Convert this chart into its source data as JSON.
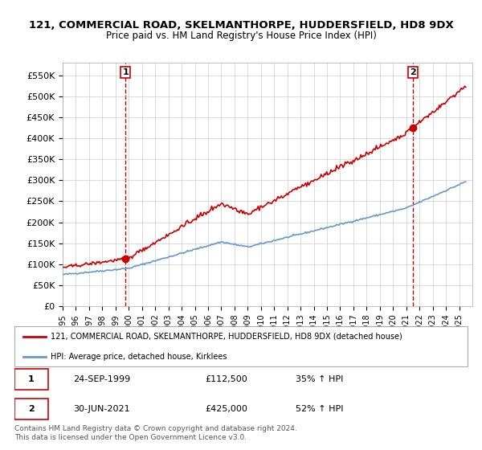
{
  "title1": "121, COMMERCIAL ROAD, SKELMANTHORPE, HUDDERSFIELD, HD8 9DX",
  "title2": "Price paid vs. HM Land Registry's House Price Index (HPI)",
  "ylabel_ticks": [
    "£0",
    "£50K",
    "£100K",
    "£150K",
    "£200K",
    "£250K",
    "£300K",
    "£350K",
    "£400K",
    "£450K",
    "£500K",
    "£550K"
  ],
  "ytick_values": [
    0,
    50000,
    100000,
    150000,
    200000,
    250000,
    300000,
    350000,
    400000,
    450000,
    500000,
    550000
  ],
  "ylim": [
    0,
    580000
  ],
  "sale1": {
    "date": "1999-09-24",
    "price": 112500,
    "label": "1",
    "pct": "35%"
  },
  "sale2": {
    "date": "2021-06-30",
    "price": 425000,
    "label": "2",
    "pct": "52%"
  },
  "legend_line1": "121, COMMERCIAL ROAD, SKELMANTHORPE, HUDDERSFIELD, HD8 9DX (detached house)",
  "legend_line2": "HPI: Average price, detached house, Kirklees",
  "table_rows": [
    {
      "num": "1",
      "date": "24-SEP-1999",
      "price": "£112,500",
      "pct": "35% ↑ HPI"
    },
    {
      "num": "2",
      "date": "30-JUN-2021",
      "price": "£425,000",
      "pct": "52% ↑ HPI"
    }
  ],
  "footer": "Contains HM Land Registry data © Crown copyright and database right 2024.\nThis data is licensed under the Open Government Licence v3.0.",
  "line_color_red": "#cc0000",
  "line_color_blue": "#6699cc",
  "background_color": "#ffffff",
  "grid_color": "#cccccc",
  "sale_marker_color_red": "#cc0000",
  "sale_marker_color_blue": "#6699cc",
  "dashed_line_color": "#cc0000"
}
